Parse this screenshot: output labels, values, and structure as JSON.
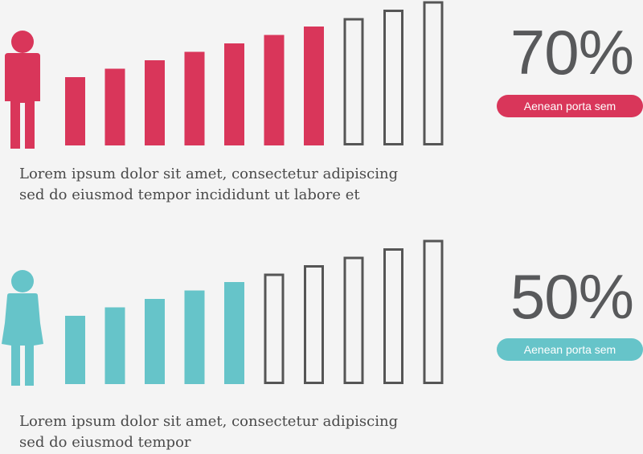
{
  "chart_data": [
    {
      "type": "bar",
      "percentage_label": "70%",
      "value": 70,
      "pill_label": "Aenean porta sem",
      "description": [
        "Lorem ipsum dolor sit amet, consectetur adipiscing",
        "sed do eiusmod tempor incididunt ut labore et"
      ],
      "icon": "male-person-icon",
      "filled_bars": 7,
      "total_bars": 10,
      "accent_color": "#d9365a"
    },
    {
      "type": "bar",
      "percentage_label": "50%",
      "value": 50,
      "pill_label": "Aenean porta sem",
      "description": [
        "Lorem ipsum dolor sit amet, consectetur adipiscing",
        "sed do eiusmod tempor"
      ],
      "icon": "female-person-icon",
      "filled_bars": 5,
      "total_bars": 10,
      "accent_color": "#66c4c9"
    }
  ],
  "outline_color": "#555555"
}
